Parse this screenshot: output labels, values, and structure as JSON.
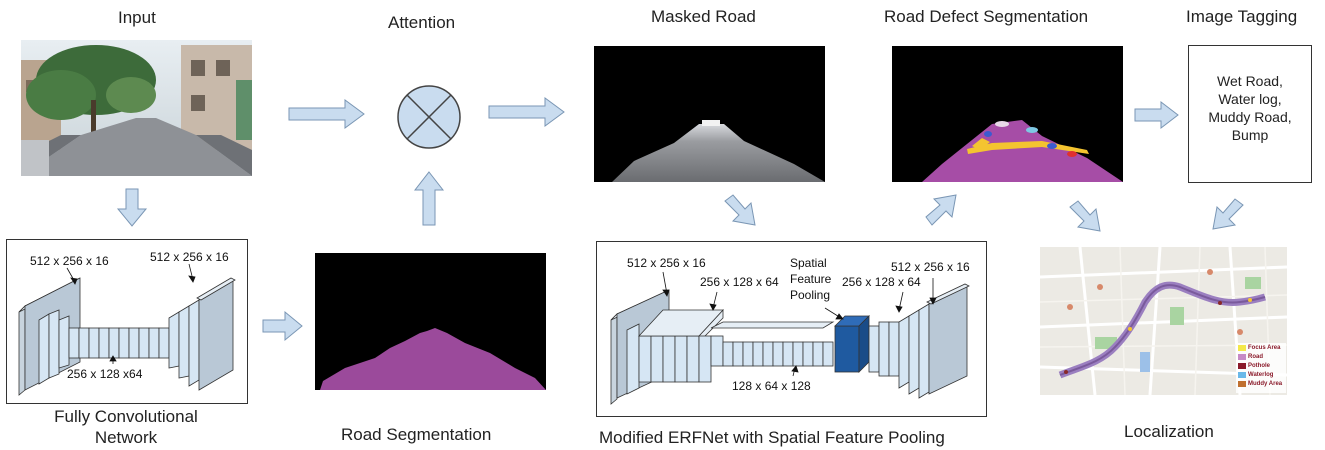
{
  "stages": {
    "input": "Input",
    "attention": "Attention",
    "masked_road": "Masked Road",
    "road_defect_segmentation": "Road Defect Segmentation",
    "image_tagging": "Image Tagging",
    "fcn_line1": "Fully Convolutional",
    "fcn_line2": "Network",
    "road_segmentation": "Road Segmentation",
    "erfnet": "Modified ERFNet  with Spatial Feature Pooling",
    "localization": "Localization"
  },
  "tags": [
    "Wet Road,",
    "Water log,",
    "Muddy Road,",
    "Bump"
  ],
  "fcn_dims": {
    "left_top": "512 x 256 x 16",
    "right_top": "512 x 256 x 16",
    "bottom": "256 x 128 x64"
  },
  "erf_dims": {
    "d1": "512 x 256 x 16",
    "d2": "256 x 128 x 64",
    "spf_1": "Spatial",
    "spf_2": "Feature",
    "spf_3": "Pooling",
    "d3": "256 x 128 x 64",
    "d4": "512 x 256 x 16",
    "d5": "128 x 64 x 128"
  },
  "map_legend": [
    "Focus Area",
    "Road",
    "Pothole",
    "Waterlog",
    "Muddy Area"
  ],
  "colors": {
    "arrow_fill": "#c9dcef",
    "arrow_stroke": "#7a96b4",
    "layer_fill": "#d6e6f4",
    "spf_fill": "#1f5aa0",
    "road_magenta": "#9b4a9b"
  }
}
